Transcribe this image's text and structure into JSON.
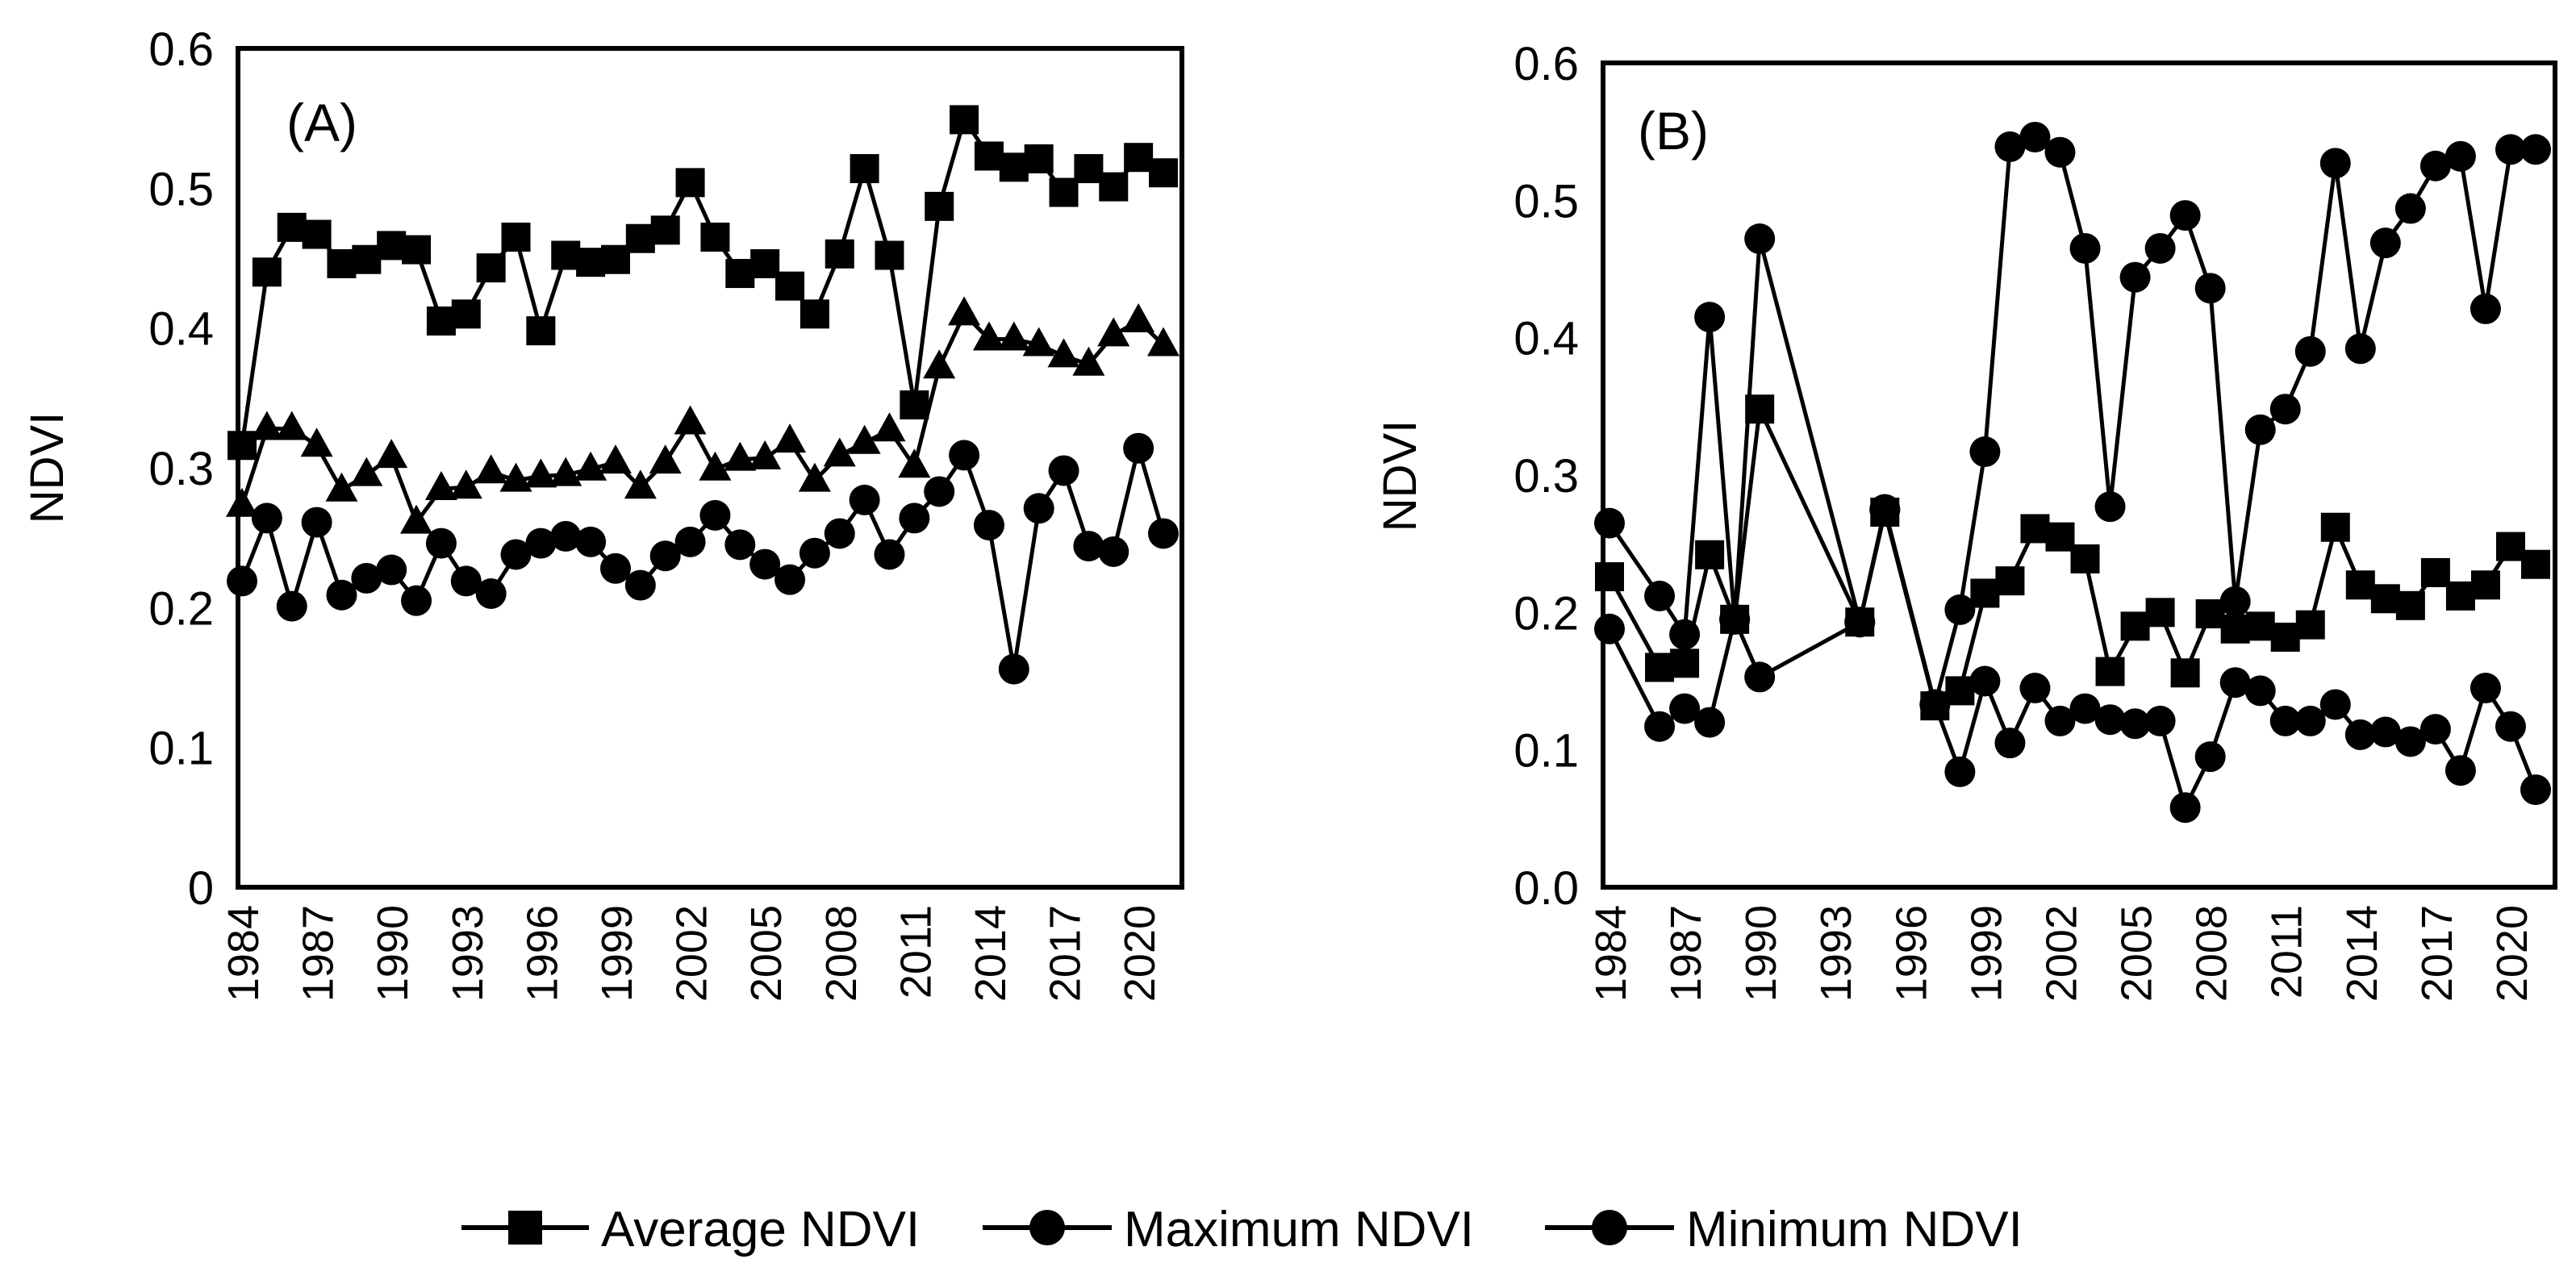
{
  "chart_data": [
    {
      "type": "line",
      "panel_label": "(A)",
      "ylabel": "NDVI",
      "xlabel": "",
      "ylim": [
        0,
        0.6
      ],
      "yticks": [
        0,
        0.1,
        0.2,
        0.3,
        0.4,
        0.5,
        0.6
      ],
      "ytick_labels": [
        "0",
        "0.1",
        "0.2",
        "0.3",
        "0.4",
        "0.5",
        "0.6"
      ],
      "xlim": [
        1984,
        2021
      ],
      "xtick_labels": [
        "1984",
        "1987",
        "1990",
        "1993",
        "1996",
        "1999",
        "2002",
        "2005",
        "2008",
        "2011",
        "2014",
        "2017",
        "2020"
      ],
      "grid": false,
      "series": [
        {
          "name": "Average NDVI",
          "marker": "square",
          "x": [
            1984,
            1985,
            1986,
            1987,
            1988,
            1989,
            1990,
            1991,
            1992,
            1993,
            1994,
            1995,
            1996,
            1997,
            1998,
            1999,
            2000,
            2001,
            2002,
            2003,
            2004,
            2005,
            2006,
            2007,
            2008,
            2009,
            2010,
            2011,
            2012,
            2013,
            2014,
            2015,
            2016,
            2017,
            2018,
            2019,
            2020,
            2021
          ],
          "values": [
            0.316,
            0.44,
            0.472,
            0.467,
            0.446,
            0.449,
            0.459,
            0.456,
            0.405,
            0.41,
            0.443,
            0.465,
            0.398,
            0.452,
            0.447,
            0.449,
            0.464,
            0.47,
            0.504,
            0.465,
            0.439,
            0.446,
            0.43,
            0.41,
            0.453,
            0.514,
            0.452,
            0.345,
            0.487,
            0.549,
            0.523,
            0.515,
            0.521,
            0.497,
            0.514,
            0.501,
            0.522,
            0.511
          ]
        },
        {
          "name": "Maximum NDVI",
          "marker": "triangle",
          "x": [
            1984,
            1985,
            1986,
            1987,
            1988,
            1989,
            1990,
            1991,
            1992,
            1993,
            1994,
            1995,
            1996,
            1997,
            1998,
            1999,
            2000,
            2001,
            2002,
            2003,
            2004,
            2005,
            2006,
            2007,
            2008,
            2009,
            2010,
            2011,
            2012,
            2013,
            2014,
            2015,
            2016,
            2017,
            2018,
            2019,
            2020,
            2021
          ],
          "values": [
            0.273,
            0.328,
            0.328,
            0.316,
            0.284,
            0.295,
            0.308,
            0.261,
            0.285,
            0.286,
            0.297,
            0.291,
            0.294,
            0.295,
            0.299,
            0.304,
            0.286,
            0.304,
            0.332,
            0.299,
            0.306,
            0.307,
            0.319,
            0.291,
            0.309,
            0.318,
            0.327,
            0.301,
            0.372,
            0.41,
            0.392,
            0.392,
            0.388,
            0.38,
            0.374,
            0.395,
            0.405,
            0.388
          ]
        },
        {
          "name": "Minimum NDVI",
          "marker": "circle",
          "x": [
            1984,
            1985,
            1986,
            1987,
            1988,
            1989,
            1990,
            1991,
            1992,
            1993,
            1994,
            1995,
            1996,
            1997,
            1998,
            1999,
            2000,
            2001,
            2002,
            2003,
            2004,
            2005,
            2006,
            2007,
            2008,
            2009,
            2010,
            2011,
            2012,
            2013,
            2014,
            2015,
            2016,
            2017,
            2018,
            2019,
            2020,
            2021
          ],
          "values": [
            0.219,
            0.264,
            0.201,
            0.261,
            0.209,
            0.221,
            0.227,
            0.205,
            0.246,
            0.219,
            0.21,
            0.238,
            0.246,
            0.251,
            0.247,
            0.228,
            0.216,
            0.237,
            0.247,
            0.266,
            0.245,
            0.231,
            0.22,
            0.239,
            0.253,
            0.277,
            0.238,
            0.264,
            0.283,
            0.309,
            0.259,
            0.156,
            0.271,
            0.298,
            0.244,
            0.24,
            0.314,
            0.253
          ]
        }
      ]
    },
    {
      "type": "line",
      "panel_label": "(B)",
      "ylabel": "NDVI",
      "xlabel": "",
      "ylim": [
        0,
        0.6
      ],
      "yticks": [
        0,
        0.1,
        0.2,
        0.3,
        0.4,
        0.5,
        0.6
      ],
      "ytick_labels": [
        "0.0",
        "0.1",
        "0.2",
        "0.3",
        "0.4",
        "0.5",
        "0.6"
      ],
      "xlim": [
        1984,
        2021
      ],
      "xtick_labels": [
        "1984",
        "1987",
        "1990",
        "1993",
        "1996",
        "1999",
        "2002",
        "2005",
        "2008",
        "2011",
        "2014",
        "2017",
        "2020"
      ],
      "grid": false,
      "series": [
        {
          "name": "Average NDVI",
          "marker": "square",
          "x": [
            1984,
            1986,
            1987,
            1988,
            1989,
            1990,
            1994,
            1995,
            1997,
            1998,
            1999,
            2000,
            2001,
            2002,
            2003,
            2004,
            2005,
            2006,
            2007,
            2008,
            2009,
            2010,
            2011,
            2012,
            2013,
            2014,
            2015,
            2016,
            2017,
            2018,
            2019,
            2020,
            2021
          ],
          "values": [
            0.226,
            0.16,
            0.163,
            0.242,
            0.195,
            0.348,
            0.193,
            0.273,
            0.132,
            0.143,
            0.214,
            0.223,
            0.261,
            0.255,
            0.239,
            0.157,
            0.19,
            0.2,
            0.156,
            0.199,
            0.188,
            0.19,
            0.182,
            0.191,
            0.262,
            0.22,
            0.21,
            0.205,
            0.229,
            0.212,
            0.22,
            0.248,
            0.235
          ]
        },
        {
          "name": "Maximum NDVI",
          "marker": "circle",
          "x": [
            1984,
            1986,
            1987,
            1988,
            1989,
            1990,
            1994,
            1995,
            1997,
            1998,
            1999,
            2000,
            2001,
            2002,
            2003,
            2004,
            2005,
            2006,
            2007,
            2008,
            2009,
            2010,
            2011,
            2012,
            2013,
            2014,
            2015,
            2016,
            2017,
            2018,
            2019,
            2020,
            2021
          ],
          "values": [
            0.265,
            0.212,
            0.184,
            0.415,
            0.195,
            0.472,
            0.193,
            0.275,
            0.133,
            0.202,
            0.317,
            0.539,
            0.546,
            0.535,
            0.465,
            0.277,
            0.444,
            0.465,
            0.489,
            0.436,
            0.208,
            0.333,
            0.348,
            0.39,
            0.527,
            0.392,
            0.469,
            0.494,
            0.525,
            0.532,
            0.421,
            0.537,
            0.537
          ]
        },
        {
          "name": "Minimum NDVI",
          "marker": "circle",
          "x": [
            1984,
            1986,
            1987,
            1988,
            1989,
            1990,
            1994,
            1995,
            1997,
            1998,
            1999,
            2000,
            2001,
            2002,
            2003,
            2004,
            2005,
            2006,
            2007,
            2008,
            2009,
            2010,
            2011,
            2012,
            2013,
            2014,
            2015,
            2016,
            2017,
            2018,
            2019,
            2020,
            2021
          ],
          "values": [
            0.188,
            0.117,
            0.13,
            0.12,
            0.195,
            0.153,
            0.193,
            0.275,
            0.133,
            0.084,
            0.15,
            0.105,
            0.145,
            0.121,
            0.13,
            0.122,
            0.119,
            0.121,
            0.058,
            0.095,
            0.149,
            0.143,
            0.121,
            0.121,
            0.133,
            0.111,
            0.113,
            0.106,
            0.115,
            0.085,
            0.145,
            0.117,
            0.071
          ]
        }
      ]
    }
  ],
  "legend": {
    "position": "bottom-center",
    "items": [
      {
        "label": "Average NDVI",
        "marker": "square"
      },
      {
        "label": "Maximum NDVI",
        "marker": "circle"
      },
      {
        "label": "Minimum NDVI",
        "marker": "circle"
      }
    ]
  }
}
